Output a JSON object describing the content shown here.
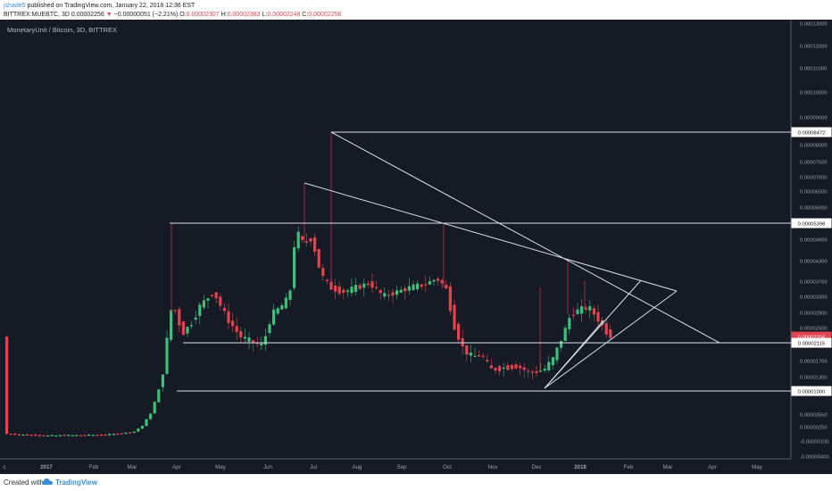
{
  "header": {
    "author": "jshade5",
    "published": " published on TradingView.com, January 22, 2018 12:36 EST",
    "symbol": "BITTREX:MUEBTC, 3D ",
    "price": "0.00002256",
    "arrow": "▼",
    "change": "−0.00000051 (−2.21%)",
    "o_label": " O:",
    "o_val": "0.00002307",
    "h_label": " H:",
    "h_val": "0.00002383",
    "l_label": " L:",
    "l_val": "0.00002248",
    "c_label": " C:",
    "c_val": "0.00002256"
  },
  "footer": {
    "created": "Created with",
    "brand": "TradingView"
  },
  "colors": {
    "background": "#151a25",
    "up": "#3ebf7a",
    "down": "#e1454f",
    "line": "#d9dde6",
    "text": "#9aa0ad"
  },
  "chart_data": {
    "type": "candlestick",
    "title": "MonetaryUnit / Bitcoin, 3D, BITTREX",
    "x_ticks": [
      "c",
      "2017",
      "Feb",
      "Mar",
      "Apr",
      "May",
      "Jun",
      "Jul",
      "Aug",
      "Sep",
      "Oct",
      "Nov",
      "Dec",
      "2018",
      "Feb",
      "Mar",
      "Apr",
      "May"
    ],
    "y_ticks": [
      "0.00013000",
      "0.00012000",
      "0.00011000",
      "0.00010000",
      "0.00009000",
      "0.00008000",
      "0.00007500",
      "0.00007000",
      "0.00006500",
      "0.00006000",
      "0.00004900",
      "0.00004300",
      "0.00003700",
      "0.00003300",
      "0.00002900",
      "0.00002500",
      "0.00001700",
      "0.00001300",
      "0.00000550",
      "0.00000250",
      "-0.00000100",
      "-0.00000400"
    ],
    "price_labels": [
      {
        "value": "0.00008472",
        "kind": "horizontal-line"
      },
      {
        "value": "0.00005398",
        "kind": "horizontal-line"
      },
      {
        "value": "0.00002256",
        "kind": "last-price"
      },
      {
        "value": "0.00002115",
        "kind": "horizontal-line"
      },
      {
        "value": "0.00001000",
        "kind": "horizontal-line"
      }
    ],
    "y_scale": "log",
    "grid": false,
    "series": [
      {
        "type": "candles",
        "approx_weeks": 56
      }
    ]
  }
}
